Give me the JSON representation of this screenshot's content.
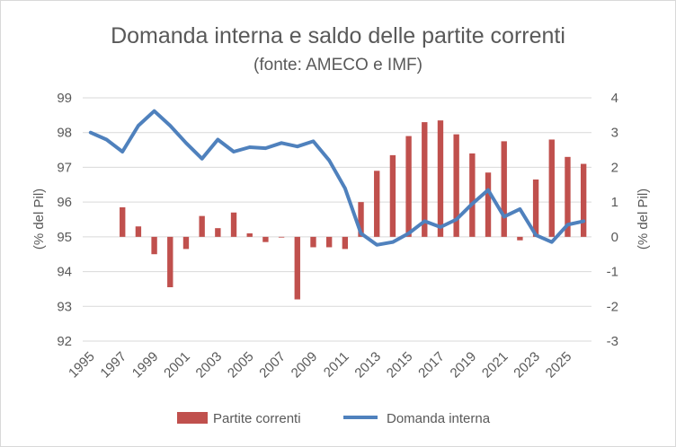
{
  "chart_data": {
    "type": "bar+line",
    "title": "Domanda interna e saldo delle partite correnti",
    "subtitle": "(fonte: AMECO e IMF)",
    "ylabel_left": "(% del Pil)",
    "ylabel_right": "(% del Pil)",
    "ylim_left": [
      92,
      99
    ],
    "ylim_right": [
      -3,
      4
    ],
    "yticks_left": [
      "99",
      "98",
      "97",
      "96",
      "95",
      "94",
      "93",
      "92"
    ],
    "yticks_right": [
      "4",
      "3",
      "2",
      "1",
      "0",
      "-1",
      "-2",
      "-3"
    ],
    "x": [
      1995,
      1996,
      1997,
      1998,
      1999,
      2000,
      2001,
      2002,
      2003,
      2004,
      2005,
      2006,
      2007,
      2008,
      2009,
      2010,
      2011,
      2012,
      2013,
      2014,
      2015,
      2016,
      2017,
      2018,
      2019,
      2020,
      2021,
      2022,
      2023,
      2024,
      2025,
      2026
    ],
    "xtick_labels": [
      "1995",
      "1997",
      "1999",
      "2001",
      "2003",
      "2005",
      "2007",
      "2009",
      "2011",
      "2013",
      "2015",
      "2017",
      "2019",
      "2021",
      "2023",
      "2025"
    ],
    "grid": true,
    "legend_position": "bottom",
    "series": [
      {
        "name": "Partite correnti",
        "type": "bar",
        "axis": "right",
        "color": "#c0504d",
        "values": [
          null,
          null,
          0.85,
          0.3,
          -0.5,
          -1.45,
          -0.35,
          0.6,
          0.25,
          0.7,
          0.1,
          -0.15,
          0.0,
          -1.8,
          -0.3,
          -0.3,
          -0.35,
          1.0,
          1.9,
          2.35,
          2.9,
          3.3,
          3.35,
          2.95,
          2.4,
          1.85,
          2.75,
          -0.1,
          1.65,
          2.8,
          2.3,
          2.1
        ]
      },
      {
        "name": "Domanda interna",
        "type": "line",
        "axis": "left",
        "color": "#4f81bd",
        "values": [
          98.0,
          97.8,
          97.45,
          98.2,
          98.62,
          98.2,
          97.7,
          97.25,
          97.8,
          97.45,
          97.58,
          97.55,
          97.7,
          97.6,
          97.75,
          97.2,
          96.4,
          95.1,
          94.77,
          94.85,
          95.1,
          95.45,
          95.28,
          95.5,
          95.95,
          96.35,
          95.58,
          95.8,
          95.05,
          94.85,
          95.35,
          95.45
        ]
      }
    ]
  }
}
